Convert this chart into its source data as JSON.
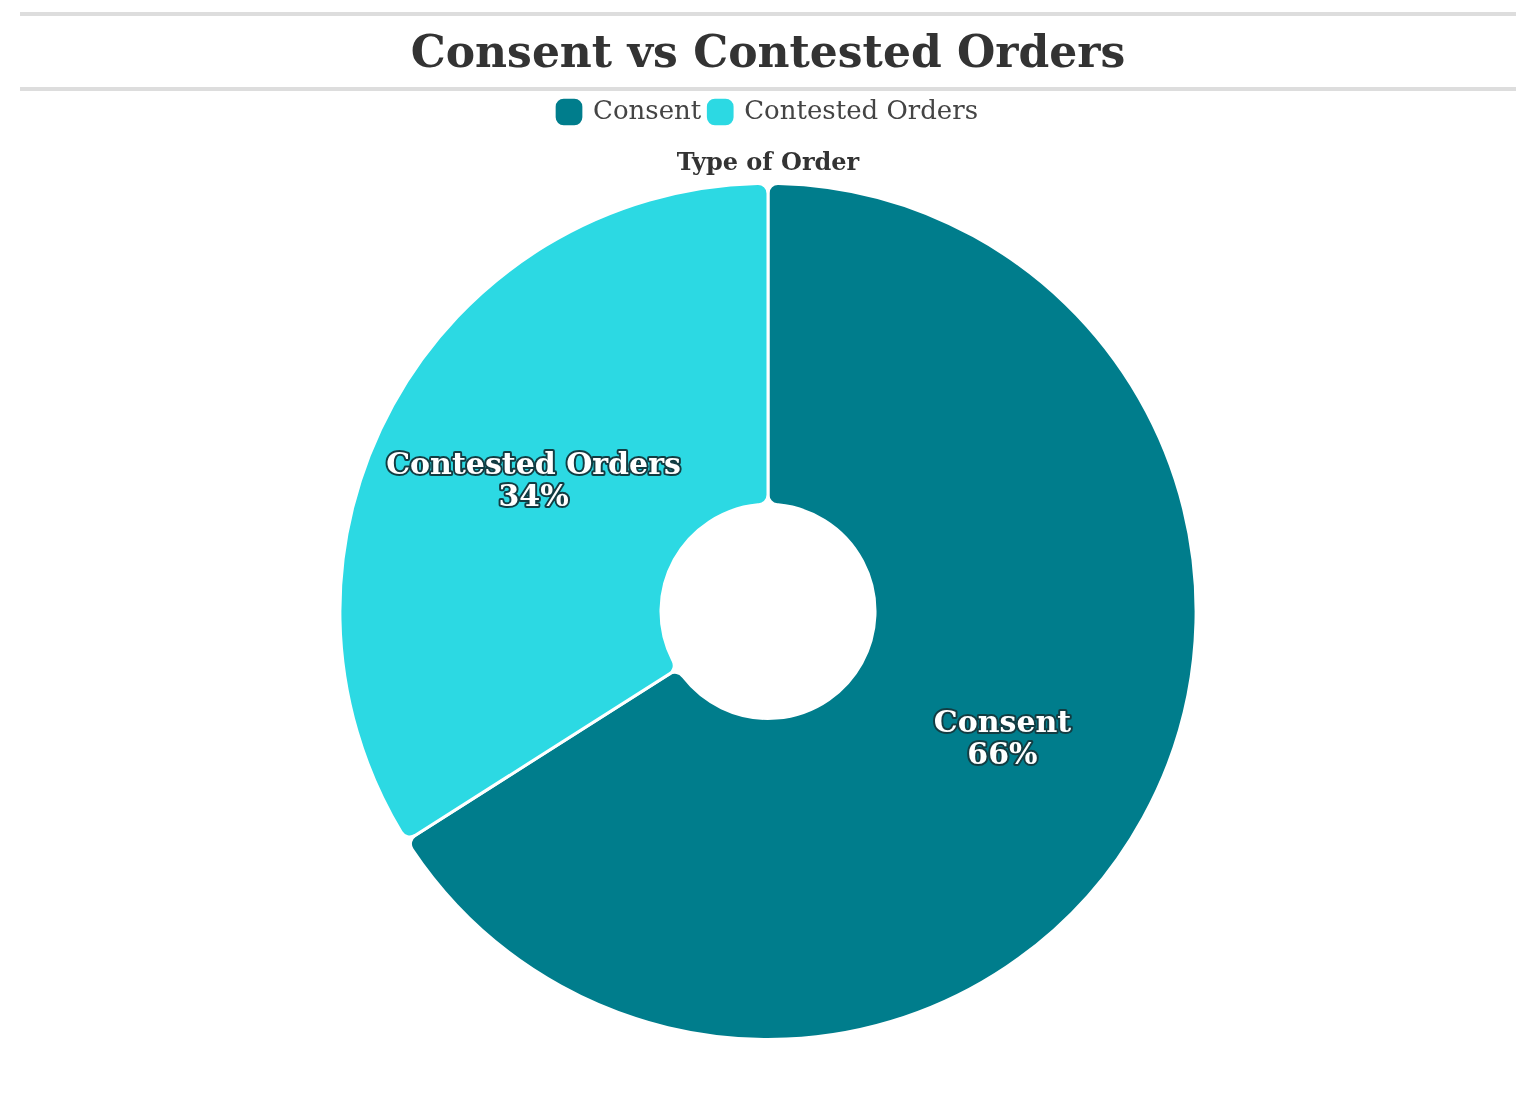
{
  "chart_data": {
    "type": "donut",
    "title": "Consent vs Contested Orders",
    "subtitle": "Type of Order",
    "categories": [
      "Consent",
      "Contested Orders"
    ],
    "values": [
      66,
      34
    ],
    "colors": [
      "#007d8c",
      "#2cd9e3"
    ],
    "value_labels": [
      "66%",
      "34%"
    ],
    "legend": "top"
  }
}
